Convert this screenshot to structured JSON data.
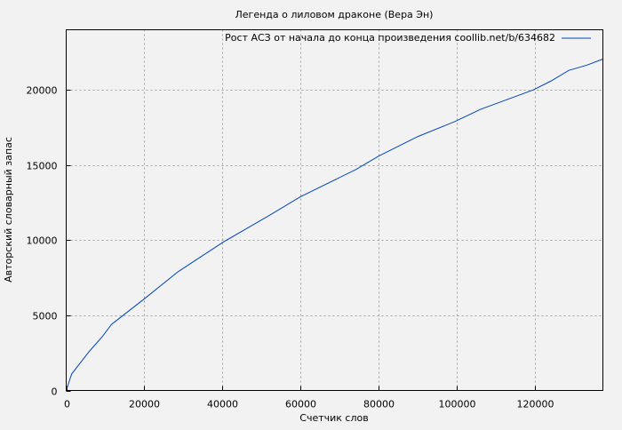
{
  "chart_data": {
    "type": "line",
    "title": "Легенда о лиловом драконе (Вера Эн)",
    "xlabel": "Счетчик слов",
    "ylabel": "Авторский словарный запас",
    "xlim": [
      0,
      137300
    ],
    "ylim": [
      0,
      24000
    ],
    "xticks": [
      0,
      20000,
      40000,
      60000,
      80000,
      100000,
      120000
    ],
    "yticks": [
      0,
      5000,
      10000,
      15000,
      20000
    ],
    "grid": true,
    "legend_position": "top-right",
    "series": [
      {
        "name": "Рост АСЗ от начала до конца произведения coollib.net/b/634682",
        "color": "#0044bb",
        "x": [
          0,
          1400,
          3200,
          5900,
          9300,
          11600,
          20000,
          28600,
          40000,
          51400,
          60000,
          74100,
          80000,
          90000,
          99500,
          105900,
          119500,
          124100,
          128600,
          133200,
          137300
        ],
        "y": [
          0,
          1100,
          1700,
          2600,
          3600,
          4400,
          6100,
          7900,
          9850,
          11560,
          12900,
          14700,
          15600,
          16900,
          17900,
          18700,
          20000,
          20600,
          21300,
          21650,
          22050
        ]
      }
    ]
  }
}
